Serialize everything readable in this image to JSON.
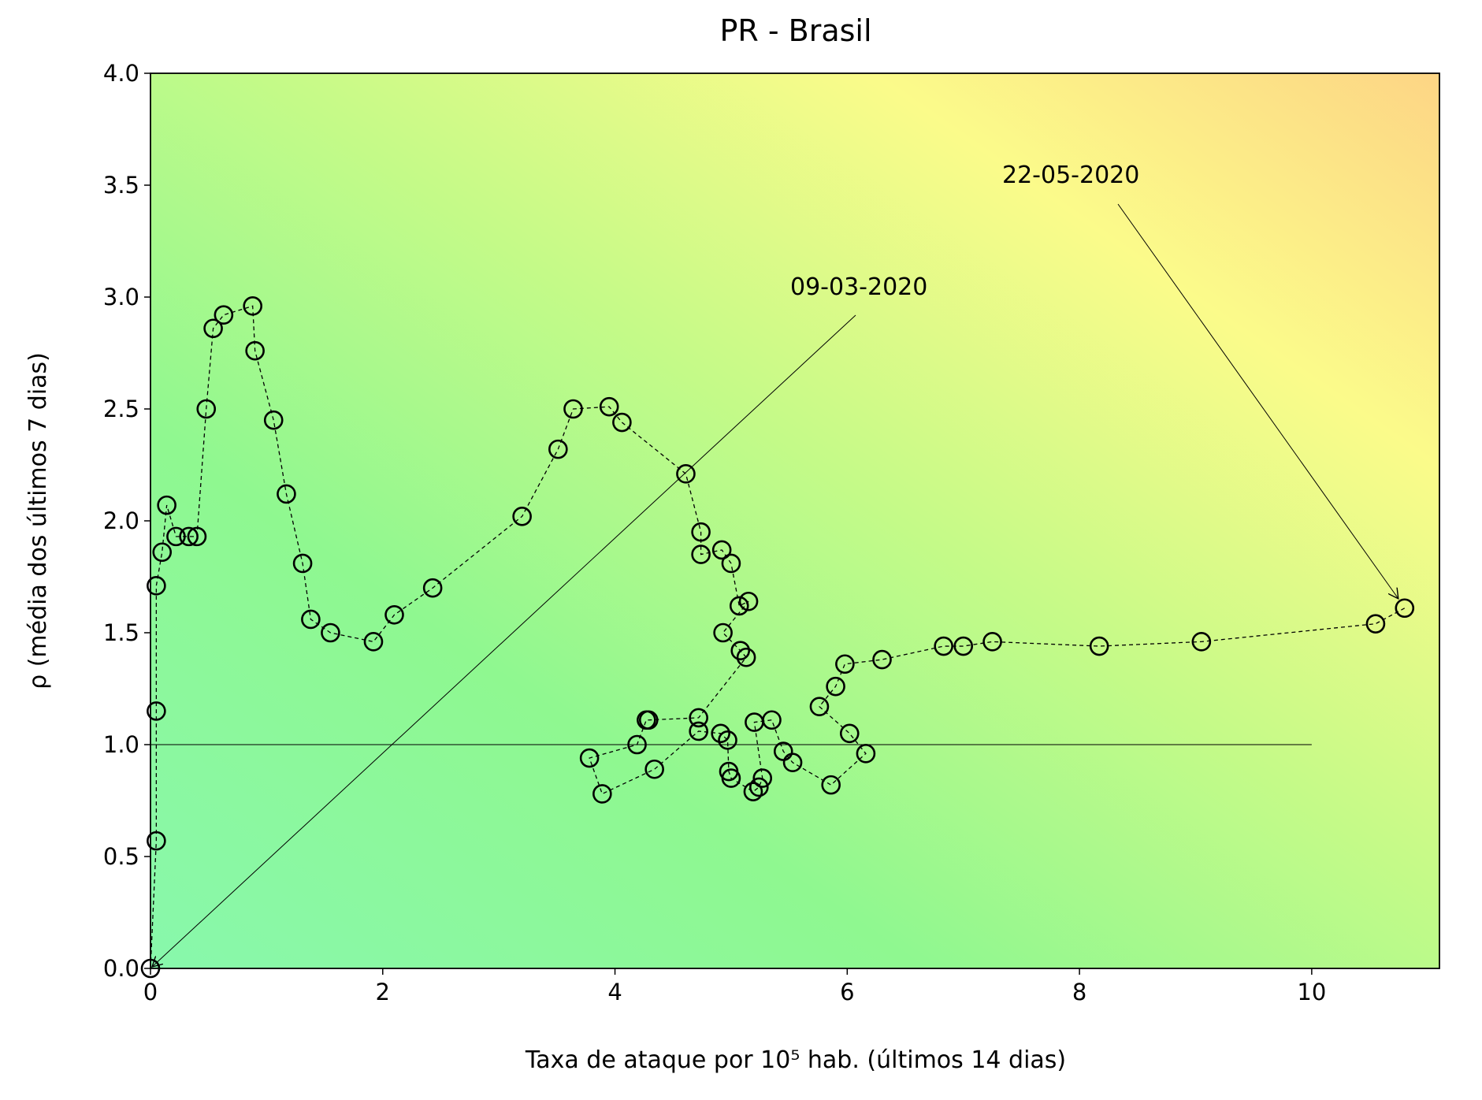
{
  "chart_data": {
    "type": "scatter",
    "title": "PR - Brasil",
    "x_label": "Taxa de ataque por 10⁵ hab. (últimos 14 dias)",
    "y_label": "ρ (média dos últimos 7 dias)",
    "x": [
      0,
      0.05,
      0.05,
      0.05,
      0.1,
      0.14,
      0.22,
      0.33,
      0.4,
      0.48,
      0.54,
      0.63,
      0.88,
      0.9,
      1.06,
      1.17,
      1.31,
      1.38,
      1.55,
      1.92,
      2.1,
      2.43,
      3.2,
      3.51,
      3.64,
      3.95,
      4.06,
      4.61,
      4.74,
      4.74,
      4.92,
      5.0,
      5.07,
      5.15,
      4.93,
      5.08,
      5.13,
      4.72,
      4.29,
      4.27,
      4.19,
      3.78,
      3.89,
      4.34,
      4.72,
      4.91,
      4.97,
      4.98,
      5.0,
      5.19,
      5.24,
      5.27,
      5.2,
      5.35,
      5.45,
      5.53,
      5.86,
      6.16,
      6.02,
      5.76,
      5.9,
      5.98,
      6.3,
      6.83,
      7.0,
      7.25,
      8.17,
      9.05,
      10.55,
      10.8
    ],
    "y": [
      0,
      0.57,
      1.15,
      1.71,
      1.86,
      2.07,
      1.93,
      1.93,
      1.93,
      2.5,
      2.86,
      2.92,
      2.96,
      2.76,
      2.45,
      2.12,
      1.81,
      1.56,
      1.5,
      1.46,
      1.58,
      1.7,
      2.02,
      2.32,
      2.5,
      2.51,
      2.44,
      2.21,
      1.95,
      1.85,
      1.87,
      1.81,
      1.62,
      1.64,
      1.5,
      1.42,
      1.39,
      1.12,
      1.11,
      1.11,
      1.0,
      0.94,
      0.78,
      0.89,
      1.06,
      1.05,
      1.02,
      0.88,
      0.85,
      0.79,
      0.81,
      0.85,
      1.1,
      1.11,
      0.97,
      0.92,
      0.82,
      0.96,
      1.05,
      1.17,
      1.26,
      1.36,
      1.38,
      1.44,
      1.44,
      1.46,
      1.44,
      1.46,
      1.54,
      1.61
    ],
    "xlim": [
      0,
      11.1
    ],
    "ylim": [
      0,
      4.0
    ],
    "xticks": [
      0,
      2,
      4,
      6,
      8,
      10
    ],
    "yticks": [
      {
        "value": 0,
        "label": "0.0"
      },
      {
        "value": 0.5,
        "label": "0.5"
      },
      {
        "value": 1,
        "label": "1.0"
      },
      {
        "value": 1.5,
        "label": "1.5"
      },
      {
        "value": 2,
        "label": "2.0"
      },
      {
        "value": 2.5,
        "label": "2.5"
      },
      {
        "value": 3,
        "label": "3.0"
      },
      {
        "value": 3.5,
        "label": "3.5"
      },
      {
        "value": 4,
        "label": "4.0"
      }
    ],
    "reference_line": {
      "y": 1,
      "x": [
        0,
        10
      ]
    },
    "annotations": [
      {
        "text": "09-03-2020"
      },
      {
        "text": "22-05-2020"
      }
    ]
  }
}
